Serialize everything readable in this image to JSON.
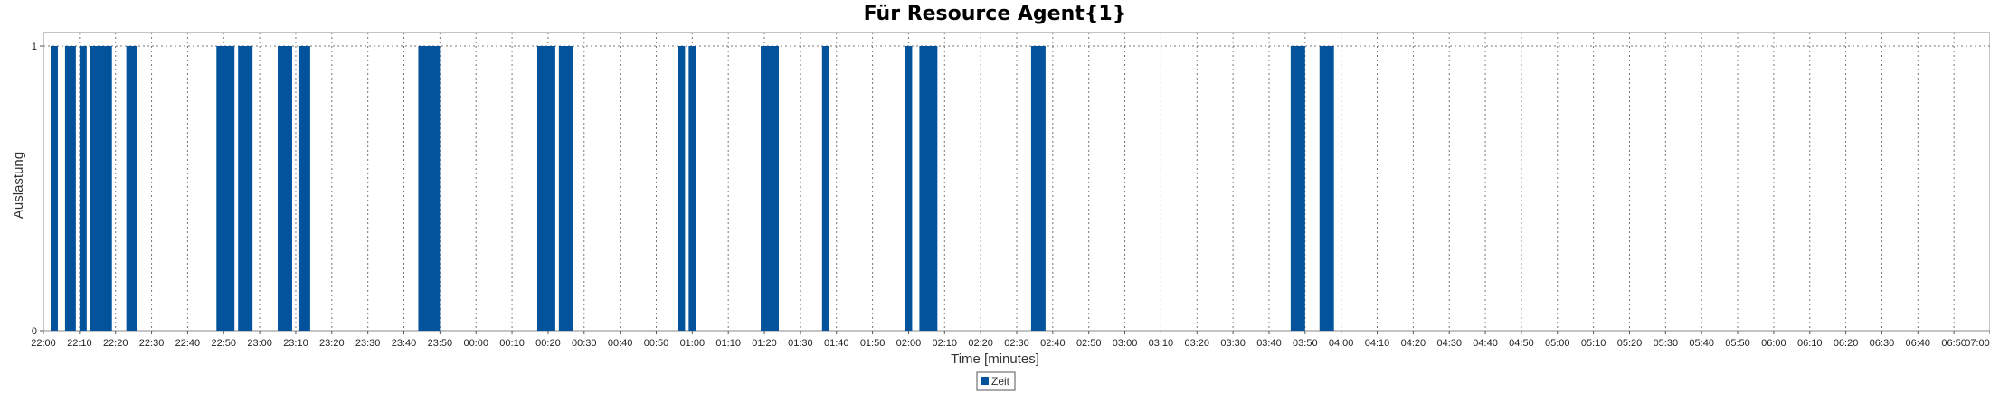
{
  "chart_data": {
    "type": "bar",
    "title": "Für Resource Agent{1}",
    "xlabel": "Time [minutes]",
    "ylabel": "Auslastung",
    "ylim": [
      0,
      1
    ],
    "yticks": [
      "0",
      "1"
    ],
    "x_ticks": [
      "22:00",
      "22:10",
      "22:20",
      "22:30",
      "22:40",
      "22:50",
      "23:00",
      "23:10",
      "23:20",
      "23:30",
      "23:40",
      "23:50",
      "00:00",
      "00:10",
      "00:20",
      "00:30",
      "00:40",
      "00:50",
      "01:00",
      "01:10",
      "01:20",
      "01:30",
      "01:40",
      "01:50",
      "02:00",
      "02:10",
      "02:20",
      "02:30",
      "02:40",
      "02:50",
      "03:00",
      "03:10",
      "03:20",
      "03:30",
      "03:40",
      "03:50",
      "04:00",
      "04:10",
      "04:20",
      "04:30",
      "04:40",
      "04:50",
      "05:00",
      "05:10",
      "05:20",
      "05:30",
      "05:40",
      "05:50",
      "06:00",
      "06:10",
      "06:20",
      "06:30",
      "06:40",
      "06:50",
      "07:00"
    ],
    "grid": true,
    "legend_position": "bottom-center",
    "color": "#02529c",
    "series": [
      {
        "name": "Zeit",
        "value": 1,
        "intervals": [
          [
            "22:02",
            "22:04"
          ],
          [
            "22:06",
            "22:09"
          ],
          [
            "22:10",
            "22:12"
          ],
          [
            "22:13",
            "22:19"
          ],
          [
            "22:23",
            "22:26"
          ],
          [
            "22:48",
            "22:53"
          ],
          [
            "22:54",
            "22:58"
          ],
          [
            "23:05",
            "23:09"
          ],
          [
            "23:11",
            "23:14"
          ],
          [
            "23:44",
            "23:50"
          ],
          [
            "00:17",
            "00:22"
          ],
          [
            "00:23",
            "00:27"
          ],
          [
            "00:56",
            "00:58"
          ],
          [
            "00:59",
            "01:01"
          ],
          [
            "01:19",
            "01:24"
          ],
          [
            "01:36",
            "01:38"
          ],
          [
            "01:59",
            "02:01"
          ],
          [
            "02:03",
            "02:08"
          ],
          [
            "02:34",
            "02:38"
          ],
          [
            "03:46",
            "03:50"
          ],
          [
            "03:54",
            "03:58"
          ]
        ]
      }
    ]
  }
}
